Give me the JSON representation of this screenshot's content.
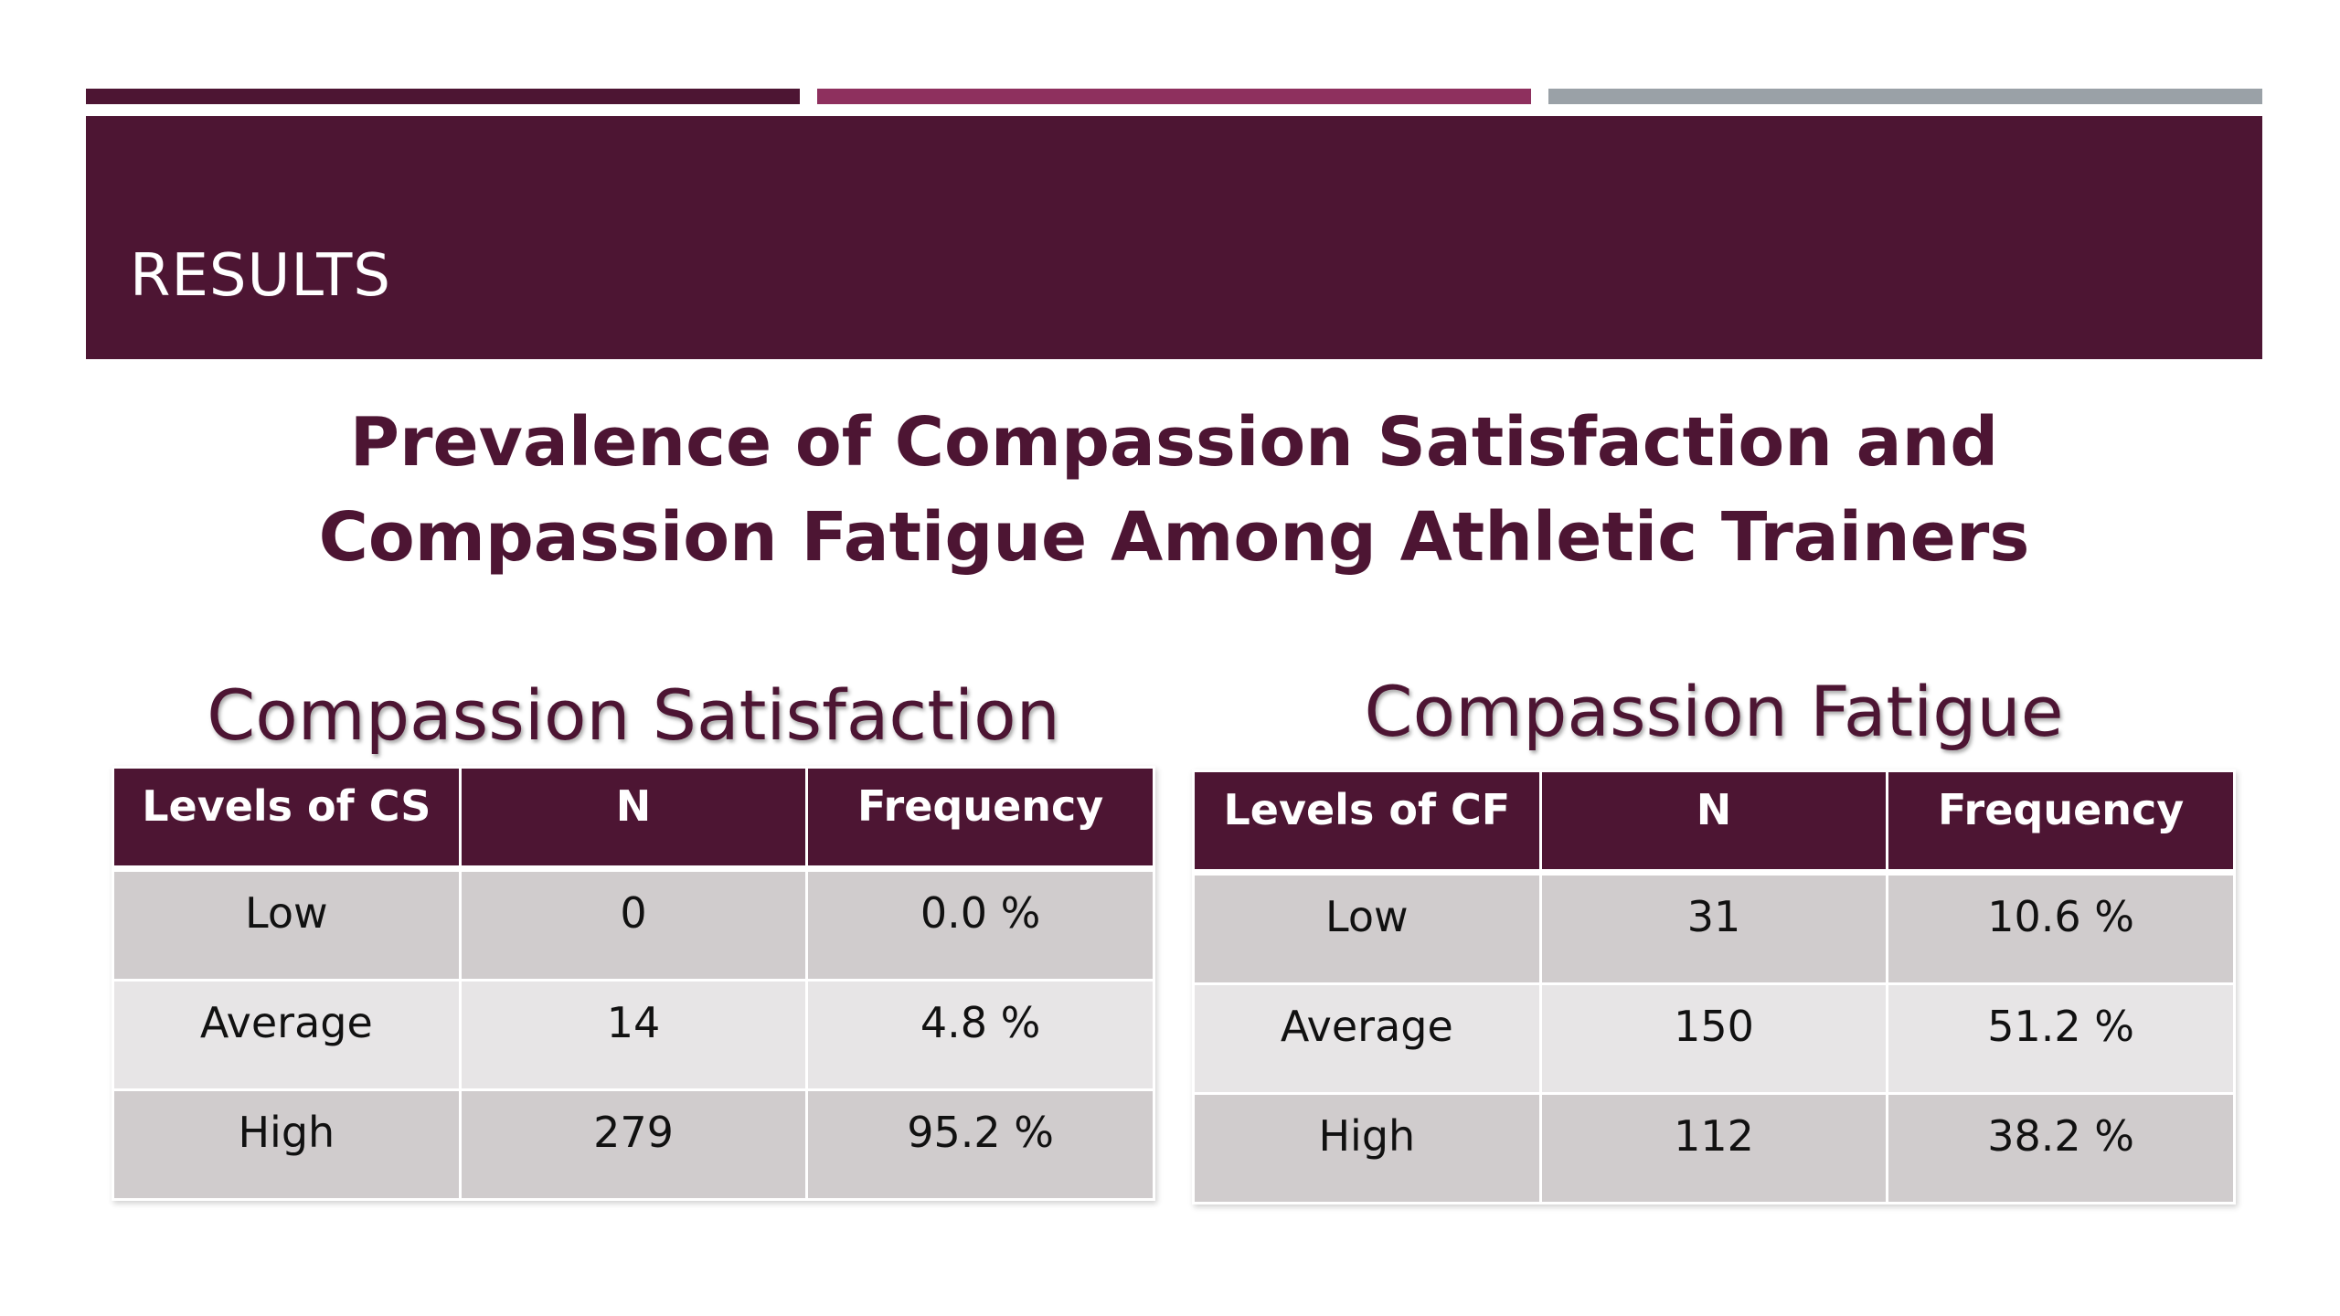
{
  "banner": {
    "title": "RESULTS"
  },
  "heading": {
    "line1": "Prevalence of Compassion Satisfaction and",
    "line2": "Compassion Fatigue Among Athletic Trainers"
  },
  "colors": {
    "primary": "#4d1533",
    "accent": "#8e305e",
    "neutral": "#9aa1a7",
    "row_dark": "#d0cccd",
    "row_light": "#e7e5e6"
  },
  "compassion_satisfaction": {
    "title": "Compassion Satisfaction",
    "headers": [
      "Levels of CS",
      "N",
      "Frequency"
    ],
    "rows": [
      [
        "Low",
        "0",
        "0.0 %"
      ],
      [
        "Average",
        "14",
        "4.8 %"
      ],
      [
        "High",
        "279",
        "95.2 %"
      ]
    ]
  },
  "compassion_fatigue": {
    "title": "Compassion Fatigue",
    "headers": [
      "Levels of CF",
      "N",
      "Frequency"
    ],
    "rows": [
      [
        "Low",
        "31",
        "10.6 %"
      ],
      [
        "Average",
        "150",
        "51.2 %"
      ],
      [
        "High",
        "112",
        "38.2 %"
      ]
    ]
  }
}
